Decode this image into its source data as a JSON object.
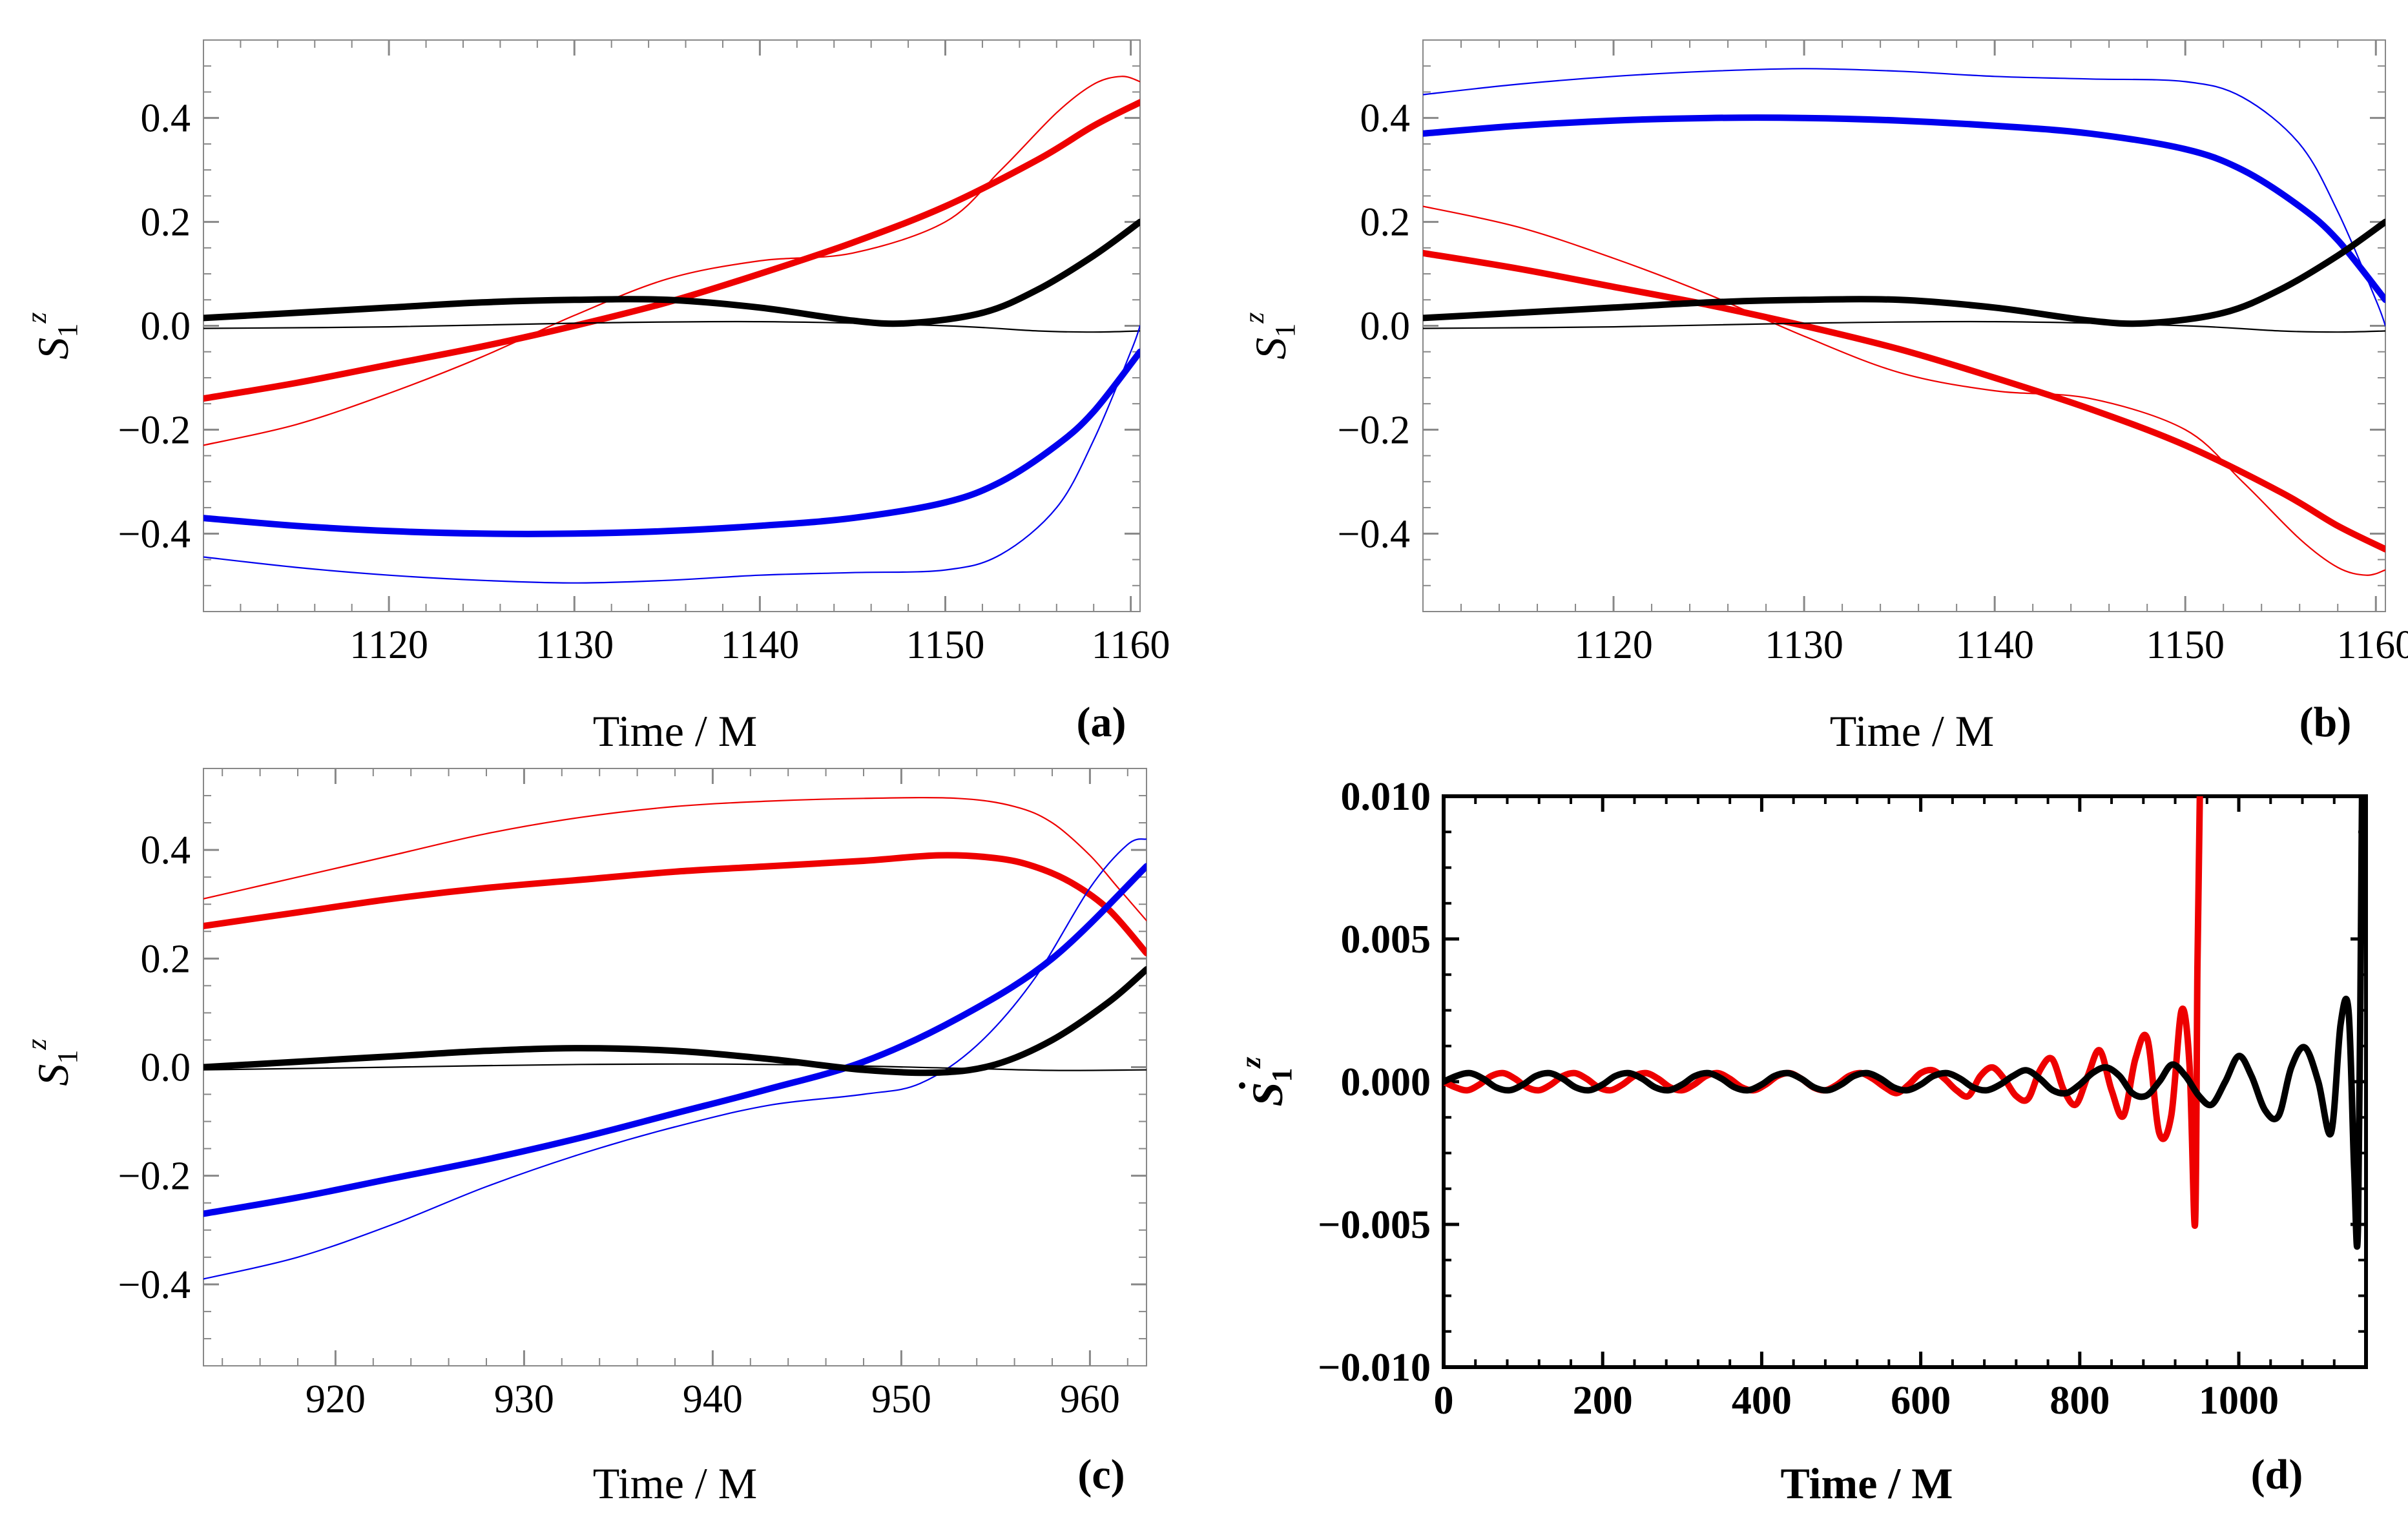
{
  "chart_data": [
    {
      "id": "a",
      "type": "line",
      "panel_label": "(a)",
      "xlabel": "Time / M",
      "ylabel_main": "S",
      "ylabel_sub": "1",
      "ylabel_sup": "z",
      "xlim": [
        1110,
        1160.5
      ],
      "ylim": [
        -0.55,
        0.55
      ],
      "xticks": [
        1120,
        1130,
        1140,
        1150,
        1160
      ],
      "xtick_labels": [
        "1120",
        "1130",
        "1140",
        "1150",
        "1160"
      ],
      "yticks": [
        0.4,
        0.2,
        0.0,
        -0.2,
        -0.4
      ],
      "ytick_labels": [
        "0.4",
        "0.2",
        "0.0",
        "−0.2",
        "−0.4"
      ],
      "series": [
        {
          "name": "red-thin",
          "color": "#ee0000",
          "width": "thin",
          "x": [
            1110,
            1115,
            1120,
            1125,
            1130,
            1135,
            1140,
            1145,
            1150,
            1153,
            1156,
            1158,
            1159.5,
            1160.5
          ],
          "y": [
            -0.23,
            -0.19,
            -0.13,
            -0.06,
            0.02,
            0.09,
            0.125,
            0.14,
            0.2,
            0.3,
            0.41,
            0.465,
            0.48,
            0.47
          ]
        },
        {
          "name": "red-thick",
          "color": "#ee0000",
          "width": "thick",
          "x": [
            1110,
            1115,
            1120,
            1125,
            1130,
            1135,
            1140,
            1145,
            1150,
            1155,
            1158,
            1160.5
          ],
          "y": [
            -0.14,
            -0.11,
            -0.075,
            -0.04,
            0.0,
            0.045,
            0.1,
            0.16,
            0.23,
            0.32,
            0.385,
            0.43
          ]
        },
        {
          "name": "black-thick",
          "color": "#000000",
          "width": "thick",
          "x": [
            1110,
            1115,
            1120,
            1125,
            1130,
            1135,
            1140,
            1145,
            1148,
            1152,
            1155,
            1158,
            1160.5
          ],
          "y": [
            0.015,
            0.025,
            0.035,
            0.045,
            0.05,
            0.05,
            0.035,
            0.01,
            0.005,
            0.025,
            0.07,
            0.135,
            0.2
          ]
        },
        {
          "name": "black-thin",
          "color": "#000000",
          "width": "thin",
          "x": [
            1110,
            1120,
            1130,
            1140,
            1150,
            1155,
            1158,
            1160.5
          ],
          "y": [
            -0.005,
            -0.002,
            0.005,
            0.008,
            0.0,
            -0.01,
            -0.012,
            -0.01
          ]
        },
        {
          "name": "blue-thick",
          "color": "#0000ee",
          "width": "thick",
          "x": [
            1110,
            1115,
            1120,
            1125,
            1130,
            1135,
            1140,
            1145,
            1150,
            1153,
            1156,
            1158,
            1160.5
          ],
          "y": [
            -0.37,
            -0.385,
            -0.395,
            -0.4,
            -0.4,
            -0.395,
            -0.385,
            -0.37,
            -0.34,
            -0.3,
            -0.23,
            -0.165,
            -0.05
          ]
        },
        {
          "name": "blue-thin",
          "color": "#0000ee",
          "width": "thin",
          "x": [
            1110,
            1115,
            1120,
            1125,
            1130,
            1135,
            1140,
            1145,
            1150,
            1153,
            1156,
            1158,
            1160,
            1160.5
          ],
          "y": [
            -0.445,
            -0.465,
            -0.48,
            -0.49,
            -0.495,
            -0.49,
            -0.48,
            -0.475,
            -0.47,
            -0.44,
            -0.35,
            -0.22,
            -0.05,
            0.0
          ]
        }
      ]
    },
    {
      "id": "b",
      "type": "line",
      "panel_label": "(b)",
      "xlabel": "Time / M",
      "ylabel_main": "S",
      "ylabel_sub": "1",
      "ylabel_sup": "z",
      "xlim": [
        1110,
        1160.5
      ],
      "ylim": [
        -0.55,
        0.55
      ],
      "xticks": [
        1120,
        1130,
        1140,
        1150,
        1160
      ],
      "xtick_labels": [
        "1120",
        "1130",
        "1140",
        "1150",
        "1160"
      ],
      "yticks": [
        0.4,
        0.2,
        0.0,
        -0.2,
        -0.4
      ],
      "ytick_labels": [
        "0.4",
        "0.2",
        "0.0",
        "−0.2",
        "−0.4"
      ],
      "series": [
        {
          "name": "blue-thin",
          "color": "#0000ee",
          "width": "thin",
          "x": [
            1110,
            1115,
            1120,
            1125,
            1130,
            1135,
            1140,
            1145,
            1150,
            1153,
            1156,
            1158,
            1160,
            1160.5
          ],
          "y": [
            0.445,
            0.465,
            0.48,
            0.49,
            0.495,
            0.49,
            0.48,
            0.475,
            0.47,
            0.44,
            0.35,
            0.22,
            0.05,
            0.0
          ]
        },
        {
          "name": "blue-thick",
          "color": "#0000ee",
          "width": "thick",
          "x": [
            1110,
            1115,
            1120,
            1125,
            1130,
            1135,
            1140,
            1145,
            1150,
            1153,
            1156,
            1158,
            1160.5
          ],
          "y": [
            0.37,
            0.385,
            0.395,
            0.4,
            0.4,
            0.395,
            0.385,
            0.37,
            0.34,
            0.3,
            0.23,
            0.165,
            0.05
          ]
        },
        {
          "name": "red-thin",
          "color": "#ee0000",
          "width": "thin",
          "x": [
            1110,
            1115,
            1120,
            1125,
            1130,
            1135,
            1140,
            1145,
            1150,
            1153,
            1156,
            1158,
            1159.5,
            1160.5
          ],
          "y": [
            0.23,
            0.19,
            0.13,
            0.06,
            -0.02,
            -0.09,
            -0.125,
            -0.14,
            -0.2,
            -0.3,
            -0.41,
            -0.465,
            -0.48,
            -0.47
          ]
        },
        {
          "name": "red-thick",
          "color": "#ee0000",
          "width": "thick",
          "x": [
            1110,
            1115,
            1120,
            1125,
            1130,
            1135,
            1140,
            1145,
            1150,
            1155,
            1158,
            1160.5
          ],
          "y": [
            0.14,
            0.11,
            0.075,
            0.04,
            0.0,
            -0.045,
            -0.1,
            -0.16,
            -0.23,
            -0.32,
            -0.385,
            -0.43
          ]
        },
        {
          "name": "black-thick",
          "color": "#000000",
          "width": "thick",
          "x": [
            1110,
            1115,
            1120,
            1125,
            1130,
            1135,
            1140,
            1145,
            1148,
            1152,
            1155,
            1158,
            1160.5
          ],
          "y": [
            0.015,
            0.025,
            0.035,
            0.045,
            0.05,
            0.05,
            0.035,
            0.01,
            0.005,
            0.025,
            0.07,
            0.135,
            0.2
          ]
        },
        {
          "name": "black-thin",
          "color": "#000000",
          "width": "thin",
          "x": [
            1110,
            1120,
            1130,
            1140,
            1150,
            1155,
            1158,
            1160.5
          ],
          "y": [
            -0.005,
            -0.002,
            0.005,
            0.008,
            0.0,
            -0.01,
            -0.012,
            -0.01
          ]
        }
      ]
    },
    {
      "id": "c",
      "type": "line",
      "panel_label": "(c)",
      "xlabel": "Time / M",
      "ylabel_main": "S",
      "ylabel_sub": "1",
      "ylabel_sup": "z",
      "xlim": [
        913,
        963
      ],
      "ylim": [
        -0.55,
        0.55
      ],
      "xticks": [
        920,
        930,
        940,
        950,
        960
      ],
      "xtick_labels": [
        "920",
        "930",
        "940",
        "950",
        "960"
      ],
      "yticks": [
        0.4,
        0.2,
        0.0,
        -0.2,
        -0.4
      ],
      "ytick_labels": [
        "0.4",
        "0.2",
        "0.0",
        "−0.2",
        "−0.4"
      ],
      "series": [
        {
          "name": "red-thin",
          "color": "#ee0000",
          "width": "thin",
          "x": [
            913,
            918,
            923,
            928,
            933,
            938,
            943,
            948,
            953,
            956,
            958,
            960,
            961.5,
            963
          ],
          "y": [
            0.31,
            0.35,
            0.39,
            0.43,
            0.46,
            0.48,
            0.49,
            0.495,
            0.495,
            0.48,
            0.45,
            0.39,
            0.33,
            0.27
          ]
        },
        {
          "name": "red-thick",
          "color": "#ee0000",
          "width": "thick",
          "x": [
            913,
            918,
            923,
            928,
            933,
            938,
            943,
            948,
            952,
            955,
            957,
            959,
            961,
            963
          ],
          "y": [
            0.26,
            0.285,
            0.31,
            0.33,
            0.345,
            0.36,
            0.37,
            0.38,
            0.39,
            0.385,
            0.37,
            0.34,
            0.29,
            0.21
          ]
        },
        {
          "name": "blue-thin",
          "color": "#0000ee",
          "width": "thin",
          "x": [
            913,
            918,
            923,
            928,
            933,
            938,
            943,
            948,
            951,
            954,
            957,
            960,
            962,
            963
          ],
          "y": [
            -0.39,
            -0.35,
            -0.29,
            -0.22,
            -0.16,
            -0.11,
            -0.07,
            -0.05,
            -0.03,
            0.04,
            0.16,
            0.33,
            0.41,
            0.42
          ]
        },
        {
          "name": "blue-thick",
          "color": "#0000ee",
          "width": "thick",
          "x": [
            913,
            918,
            923,
            928,
            933,
            938,
            943,
            948,
            953,
            958,
            963
          ],
          "y": [
            -0.27,
            -0.24,
            -0.205,
            -0.17,
            -0.13,
            -0.085,
            -0.04,
            0.01,
            0.09,
            0.2,
            0.37
          ]
        },
        {
          "name": "black-thick",
          "color": "#000000",
          "width": "thick",
          "x": [
            913,
            918,
            923,
            928,
            933,
            938,
            943,
            948,
            952,
            955,
            958,
            961,
            963
          ],
          "y": [
            0.0,
            0.01,
            0.02,
            0.03,
            0.035,
            0.03,
            0.015,
            -0.005,
            -0.01,
            0.005,
            0.05,
            0.12,
            0.18
          ]
        },
        {
          "name": "black-thin",
          "color": "#000000",
          "width": "thin",
          "x": [
            913,
            923,
            933,
            943,
            953,
            958,
            963
          ],
          "y": [
            -0.005,
            0.0,
            0.005,
            0.005,
            -0.002,
            -0.006,
            -0.005
          ]
        }
      ]
    },
    {
      "id": "d",
      "type": "line",
      "panel_label": "(d)",
      "xlabel": "Time / M",
      "ylabel_main": "S",
      "ylabel_sub": "1",
      "ylabel_sup": "z",
      "ylabel_dot": true,
      "xlim": [
        0,
        1160
      ],
      "ylim": [
        -0.01,
        0.01
      ],
      "xticks": [
        0,
        200,
        400,
        600,
        800,
        1000
      ],
      "xtick_labels": [
        "0",
        "200",
        "400",
        "600",
        "800",
        "1000"
      ],
      "yticks": [
        0.01,
        0.005,
        0.0,
        -0.005,
        -0.01
      ],
      "ytick_labels": [
        "0.010",
        "0.005",
        "0.000",
        "−0.005",
        "−0.010"
      ],
      "series": [
        {
          "name": "red-derivative",
          "color": "#ee0000",
          "width": "thick",
          "x": [
            0,
            15,
            30,
            45,
            60,
            75,
            90,
            105,
            120,
            135,
            150,
            165,
            180,
            195,
            210,
            225,
            240,
            255,
            270,
            285,
            300,
            315,
            330,
            345,
            360,
            375,
            390,
            405,
            420,
            435,
            450,
            465,
            480,
            495,
            510,
            525,
            540,
            555,
            570,
            585,
            600,
            615,
            630,
            645,
            660,
            675,
            690,
            705,
            720,
            735,
            750,
            765,
            780,
            795,
            810,
            825,
            840,
            855,
            870,
            885,
            900,
            915,
            928,
            938,
            945,
            948,
            951
          ],
          "y": [
            0.0,
            -0.0002,
            -0.0003,
            -0.0001,
            0.0002,
            0.0003,
            0.0001,
            -0.0002,
            -0.0003,
            -0.0001,
            0.0002,
            0.0003,
            0.0001,
            -0.0002,
            -0.0003,
            -0.0001,
            0.0002,
            0.0003,
            0.0001,
            -0.0002,
            -0.0003,
            -0.0001,
            0.0002,
            0.0003,
            0.0001,
            -0.0002,
            -0.0003,
            -0.0001,
            0.0002,
            0.0003,
            0.0001,
            -0.0002,
            -0.0003,
            -0.0001,
            0.0002,
            0.0003,
            0.0001,
            -0.0002,
            -0.0004,
            -0.0001,
            0.0003,
            0.0004,
            0.0001,
            -0.0003,
            -0.0005,
            0.0002,
            0.0005,
            0.0001,
            -0.0005,
            -0.0006,
            0.0004,
            0.0008,
            -0.0003,
            -0.0008,
            0.0002,
            0.0011,
            -0.0003,
            -0.0012,
            0.0008,
            0.0015,
            -0.0018,
            -0.0012,
            0.0025,
            0.0006,
            -0.005,
            0.004,
            0.01
          ]
        },
        {
          "name": "black-derivative",
          "color": "#000000",
          "width": "thick",
          "x": [
            0,
            16,
            33,
            50,
            66,
            83,
            100,
            116,
            133,
            150,
            166,
            183,
            200,
            216,
            233,
            250,
            266,
            283,
            300,
            316,
            333,
            350,
            366,
            383,
            400,
            416,
            433,
            450,
            466,
            483,
            500,
            516,
            533,
            550,
            566,
            583,
            600,
            616,
            633,
            650,
            666,
            683,
            700,
            716,
            733,
            750,
            766,
            783,
            800,
            816,
            833,
            850,
            866,
            883,
            900,
            916,
            933,
            950,
            966,
            983,
            1000,
            1016,
            1033,
            1050,
            1066,
            1083,
            1100,
            1116,
            1128,
            1138,
            1145,
            1150,
            1155
          ],
          "y": [
            0.0,
            0.0002,
            0.0003,
            0.0001,
            -0.0002,
            -0.0003,
            -0.0001,
            0.0002,
            0.0003,
            0.0001,
            -0.0002,
            -0.0003,
            -0.0001,
            0.0002,
            0.0003,
            0.0001,
            -0.0002,
            -0.0003,
            -0.0001,
            0.0002,
            0.0003,
            0.0001,
            -0.0002,
            -0.0003,
            -0.0001,
            0.0002,
            0.0003,
            0.0001,
            -0.0002,
            -0.0003,
            -0.0001,
            0.0002,
            0.0003,
            0.0001,
            -0.0002,
            -0.0003,
            -0.0001,
            0.0002,
            0.0003,
            0.0001,
            -0.0002,
            -0.0003,
            -0.0001,
            0.0002,
            0.0004,
            0.0001,
            -0.0003,
            -0.0004,
            -0.0001,
            0.0003,
            0.0005,
            0.0002,
            -0.0004,
            -0.0005,
            0.0,
            0.0006,
            0.0002,
            -0.0005,
            -0.0008,
            0.0,
            0.0009,
            0.0002,
            -0.001,
            -0.0012,
            0.0005,
            0.0012,
            0.0,
            -0.0018,
            0.002,
            0.0025,
            -0.003,
            -0.005,
            0.01
          ]
        }
      ]
    }
  ]
}
